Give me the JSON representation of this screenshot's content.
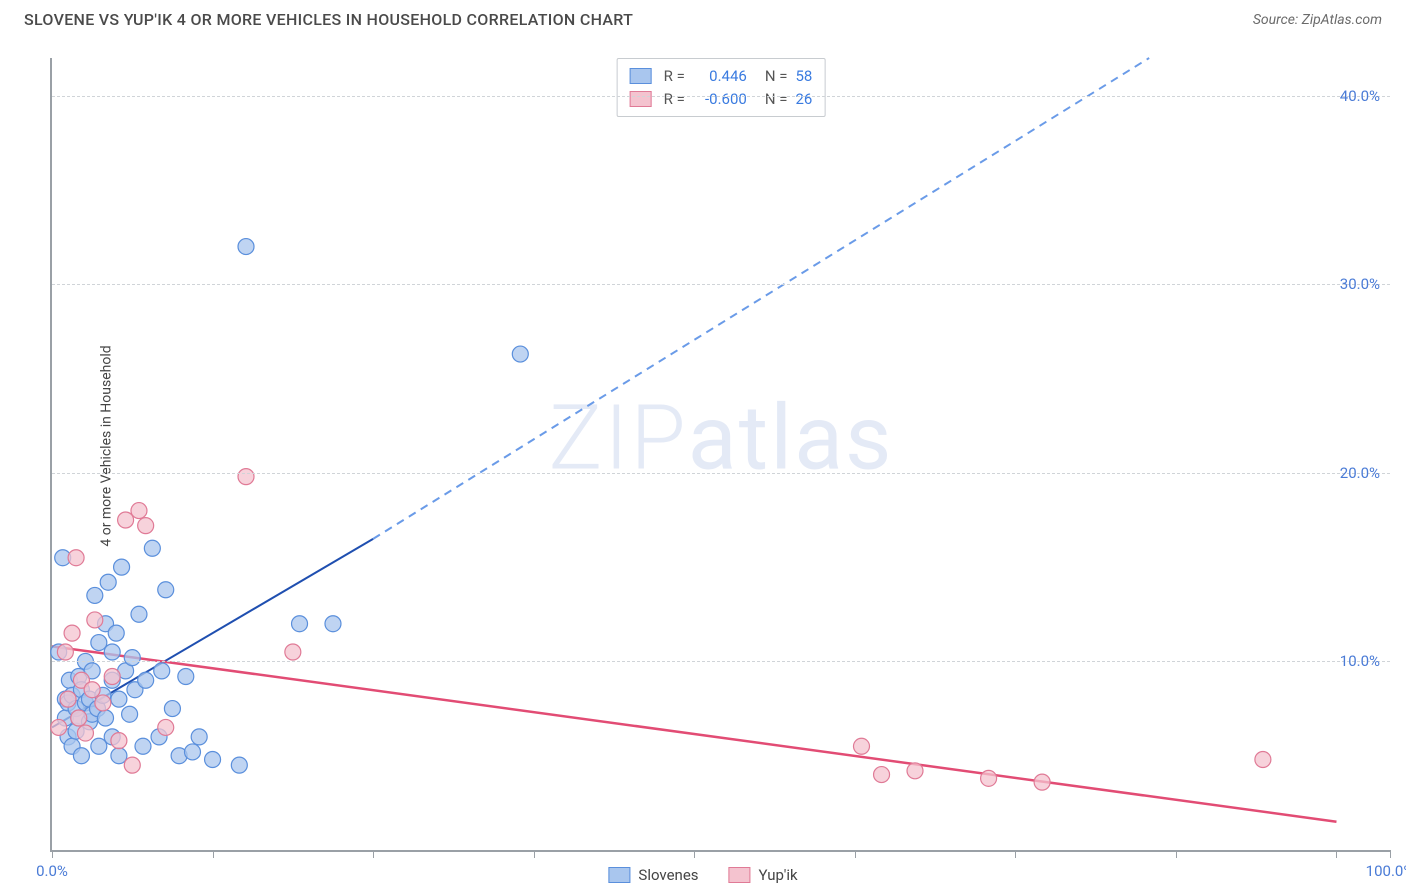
{
  "header": {
    "title": "SLOVENE VS YUP'IK 4 OR MORE VEHICLES IN HOUSEHOLD CORRELATION CHART",
    "source": "Source: ZipAtlas.com"
  },
  "chart": {
    "type": "scatter",
    "background_color": "#ffffff",
    "grid_color": "#d0d4d8",
    "axis_color": "#9aa0a6",
    "ylabel": "4 or more Vehicles in Household",
    "ylabel_fontsize": 14,
    "ylabel_color": "#444444",
    "tick_label_color": "#4a7bd6",
    "tick_label_fontsize": 15,
    "xlim": [
      0,
      100
    ],
    "ylim": [
      0,
      42
    ],
    "ytick_values": [
      10,
      20,
      30,
      40
    ],
    "ytick_labels": [
      "10.0%",
      "20.0%",
      "30.0%",
      "40.0%"
    ],
    "xtick_values": [
      0,
      12,
      24,
      36,
      48,
      60,
      72,
      84,
      96,
      100
    ],
    "xtick_labels_shown": {
      "0": "0.0%",
      "100": "100.0%"
    },
    "watermark": "ZIPatlas",
    "watermark_color": "#cfd9ef",
    "series": [
      {
        "name": "Slovenes",
        "legend_label": "Slovenes",
        "marker_color_fill": "#a9c6ee",
        "marker_color_stroke": "#5a8fdc",
        "marker_radius": 8,
        "R": "0.446",
        "N": "58",
        "trend": {
          "solid_color": "#1f4fb0",
          "dashed_color": "#6a9be8",
          "line_width": 2,
          "x1": 0,
          "y1": 6.5,
          "x_solid_end": 24,
          "y_solid_end": 16.5,
          "x2": 82,
          "y2": 42
        },
        "points": [
          [
            0.5,
            10.5
          ],
          [
            0.8,
            15.5
          ],
          [
            1.0,
            7.0
          ],
          [
            1.0,
            8.0
          ],
          [
            1.2,
            7.8
          ],
          [
            1.2,
            6.0
          ],
          [
            1.3,
            9.0
          ],
          [
            1.5,
            8.2
          ],
          [
            1.5,
            5.5
          ],
          [
            1.8,
            7.5
          ],
          [
            1.8,
            6.3
          ],
          [
            2.0,
            9.2
          ],
          [
            2.0,
            7.0
          ],
          [
            2.2,
            8.5
          ],
          [
            2.2,
            5.0
          ],
          [
            2.5,
            7.8
          ],
          [
            2.5,
            10.0
          ],
          [
            2.8,
            6.8
          ],
          [
            2.8,
            8.0
          ],
          [
            3.0,
            9.5
          ],
          [
            3.0,
            7.2
          ],
          [
            3.2,
            13.5
          ],
          [
            3.4,
            7.5
          ],
          [
            3.5,
            11.0
          ],
          [
            3.5,
            5.5
          ],
          [
            3.8,
            8.2
          ],
          [
            4.0,
            12.0
          ],
          [
            4.0,
            7.0
          ],
          [
            4.2,
            14.2
          ],
          [
            4.5,
            9.0
          ],
          [
            4.5,
            6.0
          ],
          [
            4.8,
            11.5
          ],
          [
            5.0,
            8.0
          ],
          [
            5.2,
            15.0
          ],
          [
            5.5,
            9.5
          ],
          [
            5.8,
            7.2
          ],
          [
            6.0,
            10.2
          ],
          [
            6.2,
            8.5
          ],
          [
            6.5,
            12.5
          ],
          [
            6.8,
            5.5
          ],
          [
            7.0,
            9.0
          ],
          [
            7.5,
            16.0
          ],
          [
            8.0,
            6.0
          ],
          [
            8.2,
            9.5
          ],
          [
            8.5,
            13.8
          ],
          [
            9.0,
            7.5
          ],
          [
            9.5,
            5.0
          ],
          [
            10.0,
            9.2
          ],
          [
            10.5,
            5.2
          ],
          [
            11.0,
            6.0
          ],
          [
            12.0,
            4.8
          ],
          [
            14.0,
            4.5
          ],
          [
            14.5,
            32.0
          ],
          [
            18.5,
            12.0
          ],
          [
            21.0,
            12.0
          ],
          [
            35.0,
            26.3
          ],
          [
            5.0,
            5.0
          ],
          [
            4.5,
            10.5
          ]
        ]
      },
      {
        "name": "Yup'ik",
        "legend_label": "Yup'ik",
        "marker_color_fill": "#f4c3cf",
        "marker_color_stroke": "#e07a96",
        "marker_radius": 8,
        "R": "-0.600",
        "N": "26",
        "trend": {
          "solid_color": "#e24c74",
          "dashed_color": "#e24c74",
          "line_width": 2.5,
          "x1": 0,
          "y1": 10.8,
          "x_solid_end": 96,
          "y_solid_end": 1.5,
          "x2": 96,
          "y2": 1.5
        },
        "points": [
          [
            0.5,
            6.5
          ],
          [
            1.0,
            10.5
          ],
          [
            1.2,
            8.0
          ],
          [
            1.5,
            11.5
          ],
          [
            1.8,
            15.5
          ],
          [
            2.0,
            7.0
          ],
          [
            2.2,
            9.0
          ],
          [
            2.5,
            6.2
          ],
          [
            3.0,
            8.5
          ],
          [
            3.2,
            12.2
          ],
          [
            3.8,
            7.8
          ],
          [
            4.5,
            9.2
          ],
          [
            5.0,
            5.8
          ],
          [
            5.5,
            17.5
          ],
          [
            6.0,
            4.5
          ],
          [
            6.5,
            18.0
          ],
          [
            7.0,
            17.2
          ],
          [
            8.5,
            6.5
          ],
          [
            14.5,
            19.8
          ],
          [
            18.0,
            10.5
          ],
          [
            60.5,
            5.5
          ],
          [
            62.0,
            4.0
          ],
          [
            64.5,
            4.2
          ],
          [
            70.0,
            3.8
          ],
          [
            74.0,
            3.6
          ],
          [
            90.5,
            4.8
          ]
        ]
      }
    ],
    "legend_top": {
      "border_color": "#c8ccd0",
      "bg_color": "#ffffff"
    },
    "legend_bottom_labels": [
      "Slovenes",
      "Yup'ik"
    ]
  }
}
